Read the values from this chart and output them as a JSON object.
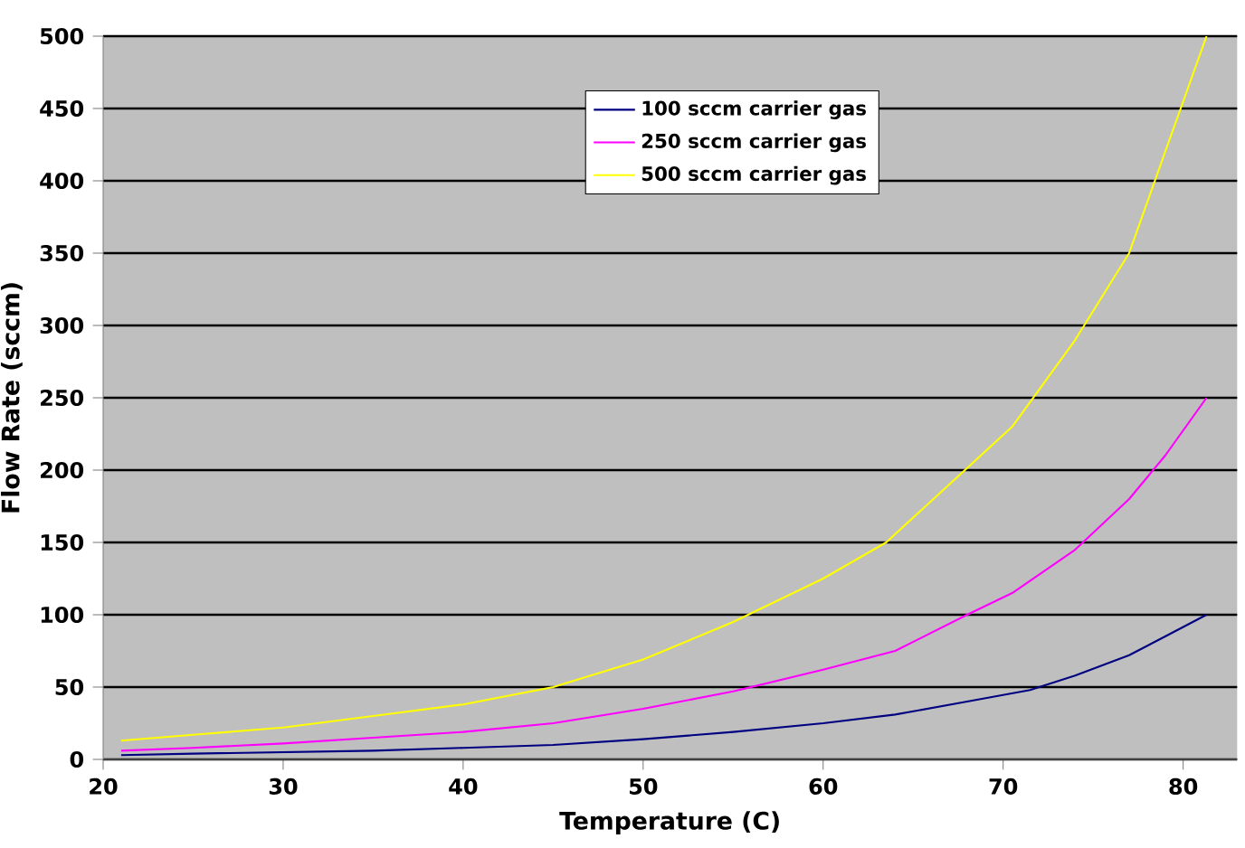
{
  "chart_data": {
    "type": "line",
    "xlabel": "Temperature (C)",
    "ylabel": "Flow Rate (sccm)",
    "xlim": [
      20,
      83
    ],
    "ylim": [
      0,
      500
    ],
    "xticks": [
      20,
      30,
      40,
      50,
      60,
      70,
      80
    ],
    "yticks": [
      0,
      50,
      100,
      150,
      200,
      250,
      300,
      350,
      400,
      450,
      500
    ],
    "grid": "y",
    "legend": "top",
    "marker": "none",
    "line_style": "solid",
    "series": [
      {
        "name": "100 sccm carrier gas",
        "color": "#000080",
        "x": [
          21,
          25,
          30,
          35,
          40,
          45,
          50,
          55,
          60,
          64,
          68,
          71.5,
          74,
          77,
          79,
          81.3
        ],
        "values": [
          3,
          4,
          5,
          6,
          8,
          10,
          14,
          19,
          25,
          31,
          40,
          48,
          58,
          72,
          85,
          100
        ]
      },
      {
        "name": "250 sccm carrier gas",
        "color": "#ff00ff",
        "x": [
          21,
          25,
          30,
          35,
          40,
          45,
          50,
          55,
          60,
          64,
          68,
          70.5,
          74,
          77,
          79,
          81.3
        ],
        "values": [
          6,
          8,
          11,
          15,
          19,
          25,
          35,
          47,
          62,
          75,
          100,
          115,
          145,
          180,
          210,
          250
        ]
      },
      {
        "name": "500 sccm carrier gas",
        "color": "#ffff00",
        "x": [
          21,
          25,
          30,
          35,
          40,
          45,
          50,
          55,
          60,
          63.5,
          67,
          70.5,
          74,
          77,
          79,
          81.3
        ],
        "values": [
          13,
          17,
          22,
          30,
          38,
          50,
          69,
          95,
          125,
          150,
          190,
          230,
          290,
          350,
          420,
          500
        ]
      }
    ]
  }
}
